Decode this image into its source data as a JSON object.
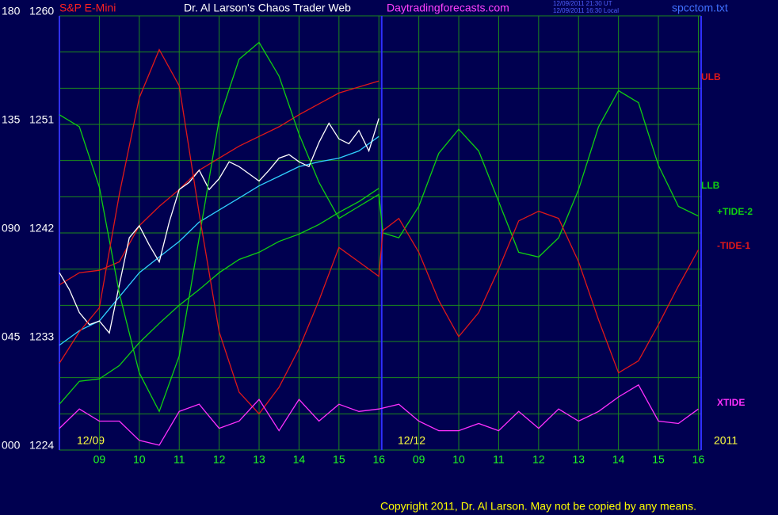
{
  "chart_data": {
    "type": "line",
    "title": "Dr. Al Larson's Chaos Trader Web",
    "subtitle": "S&P E-Mini",
    "site": "Daytradingforecasts.com",
    "timestamps": [
      "12/09/2011 21:30 UT",
      "12/09/2011 16:30 Local"
    ],
    "file": "spcctom.txt",
    "copyright": "Copyright 2011, Dr. Al Larson. May not be copied by any means.",
    "date_labels": [
      "12/09",
      "12/12",
      "2011"
    ],
    "xlim": [
      0,
      16.07
    ],
    "xticks": [
      {
        "value": 1,
        "label": "09"
      },
      {
        "value": 2,
        "label": "10"
      },
      {
        "value": 3,
        "label": "11"
      },
      {
        "value": 4,
        "label": "12"
      },
      {
        "value": 5,
        "label": "13"
      },
      {
        "value": 6,
        "label": "14"
      },
      {
        "value": 7,
        "label": "15"
      },
      {
        "value": 8,
        "label": "16"
      },
      {
        "value": 9,
        "label": "09"
      },
      {
        "value": 10,
        "label": "10"
      },
      {
        "value": 11,
        "label": "11"
      },
      {
        "value": 12,
        "label": "12"
      },
      {
        "value": 13,
        "label": "13"
      },
      {
        "value": 14,
        "label": "14"
      },
      {
        "value": 15,
        "label": "15"
      },
      {
        "value": 16,
        "label": "16"
      }
    ],
    "x_divider": 8.07,
    "ylim": [
      1224,
      1260
    ],
    "yticks": [
      1224,
      1233,
      1242,
      1251,
      1260
    ],
    "minor_yticks": [
      1227,
      1230,
      1236,
      1239,
      1245,
      1248,
      1254,
      1257
    ],
    "y2lim": [
      0,
      180
    ],
    "y2ticks": [
      {
        "value": 0,
        "label": "000"
      },
      {
        "value": 45,
        "label": "045"
      },
      {
        "value": 90,
        "label": "090"
      },
      {
        "value": 135,
        "label": "135"
      },
      {
        "value": 180,
        "label": "180"
      }
    ],
    "grid": true,
    "series": [
      {
        "name": "ULB",
        "color": "#e01818",
        "x": [
          0,
          0.5,
          1,
          1.5,
          2,
          2.5,
          3,
          3.5,
          4,
          4.5,
          5,
          5.5,
          6,
          6.5,
          7,
          7.5,
          8
        ],
        "values": [
          1237.7,
          1238.7,
          1238.9,
          1239.6,
          1242.6,
          1244.2,
          1245.6,
          1247.2,
          1248.2,
          1249.2,
          1250.0,
          1250.8,
          1251.8,
          1252.7,
          1253.6,
          1254.1,
          1254.6
        ]
      },
      {
        "name": "LLB",
        "color": "#10d010",
        "x": [
          0,
          0.5,
          1,
          1.5,
          2,
          2.5,
          3,
          3.5,
          4,
          4.5,
          5,
          5.5,
          6,
          6.5,
          7,
          7.5,
          8
        ],
        "values": [
          1227.8,
          1229.7,
          1229.9,
          1231.0,
          1232.9,
          1234.5,
          1236.0,
          1237.3,
          1238.7,
          1239.8,
          1240.4,
          1241.3,
          1241.9,
          1242.7,
          1243.7,
          1244.6,
          1245.7
        ]
      },
      {
        "color": "#30d0ff",
        "x": [
          0,
          0.5,
          1,
          1.5,
          2,
          2.5,
          3,
          3.5,
          4,
          4.5,
          5,
          5.5,
          6,
          6.5,
          7,
          7.5,
          8
        ],
        "values": [
          1232.7,
          1233.9,
          1234.7,
          1236.7,
          1238.7,
          1240.0,
          1241.3,
          1242.9,
          1243.9,
          1244.9,
          1245.9,
          1246.7,
          1247.5,
          1247.9,
          1248.2,
          1248.8,
          1250.0
        ]
      },
      {
        "color": "#ffffff",
        "x": [
          0,
          0.25,
          0.5,
          0.75,
          1,
          1.25,
          1.5,
          1.75,
          2,
          2.25,
          2.5,
          2.75,
          3,
          3.25,
          3.5,
          3.75,
          4,
          4.25,
          4.5,
          4.75,
          5,
          5.25,
          5.5,
          5.75,
          6,
          6.25,
          6.5,
          6.75,
          7,
          7.25,
          7.5,
          7.75,
          8
        ],
        "values": [
          1238.7,
          1237.3,
          1235.4,
          1234.4,
          1234.7,
          1233.7,
          1237.7,
          1241.6,
          1242.6,
          1241.0,
          1239.6,
          1242.9,
          1245.6,
          1246.2,
          1247.2,
          1245.6,
          1246.5,
          1247.9,
          1247.5,
          1246.9,
          1246.3,
          1247.2,
          1248.2,
          1248.5,
          1247.9,
          1247.5,
          1249.5,
          1251.1,
          1249.8,
          1249.4,
          1250.5,
          1248.8,
          1251.5
        ]
      },
      {
        "name": "+TIDE-2",
        "color": "#10d010",
        "axis": "y2",
        "x": [
          0,
          0.5,
          1,
          1.5,
          2,
          2.5,
          3,
          3.5,
          4,
          4.5,
          5,
          5.5,
          6,
          6.5,
          7,
          7.5,
          8,
          8.1,
          8.5,
          9,
          9.5,
          10,
          10.5,
          11,
          11.5,
          12,
          12.5,
          13,
          13.5,
          14,
          14.5,
          15,
          15.5,
          16
        ],
        "values": [
          139,
          134,
          109,
          65,
          32,
          16,
          39,
          88,
          137,
          162,
          169,
          155,
          131,
          111,
          96,
          101,
          106,
          90,
          88,
          101,
          123,
          133,
          124,
          103,
          82,
          80,
          88,
          108,
          134,
          149,
          144,
          118,
          101,
          97
        ]
      },
      {
        "name": "-TIDE-1",
        "color": "#e01818",
        "axis": "y2",
        "x": [
          0,
          0.5,
          1,
          1.5,
          2,
          2.5,
          3,
          3.5,
          4,
          4.5,
          5,
          5.5,
          6,
          6.5,
          7,
          7.5,
          8,
          8.1,
          8.5,
          9,
          9.5,
          10,
          10.5,
          11,
          11.5,
          12,
          12.5,
          13,
          13.5,
          14,
          14.5,
          15,
          15.5,
          16
        ],
        "values": [
          36,
          49,
          59,
          106,
          146,
          166,
          151,
          98,
          49,
          24,
          15,
          26,
          42,
          62,
          84,
          78,
          72,
          91,
          96,
          82,
          62,
          47,
          57,
          75,
          95,
          99,
          96,
          78,
          54,
          32,
          37,
          52,
          68,
          83
        ]
      },
      {
        "name": "XTIDE",
        "color": "#ff30ff",
        "axis": "y2",
        "x": [
          0,
          0.5,
          1,
          1.5,
          2,
          2.5,
          3,
          3.5,
          4,
          4.5,
          5,
          5.5,
          6,
          6.5,
          7,
          7.5,
          8,
          8.5,
          9,
          9.5,
          10,
          10.5,
          11,
          11.5,
          12,
          12.5,
          13,
          13.5,
          14,
          14.5,
          15,
          15.5,
          16
        ],
        "values": [
          9,
          17,
          12,
          12,
          4,
          2,
          16,
          19,
          9,
          12,
          21,
          8,
          21,
          12,
          19,
          16,
          17,
          19,
          12,
          8,
          8,
          11,
          8,
          16,
          9,
          17,
          12,
          16,
          22,
          27,
          12,
          11,
          17
        ]
      }
    ]
  }
}
